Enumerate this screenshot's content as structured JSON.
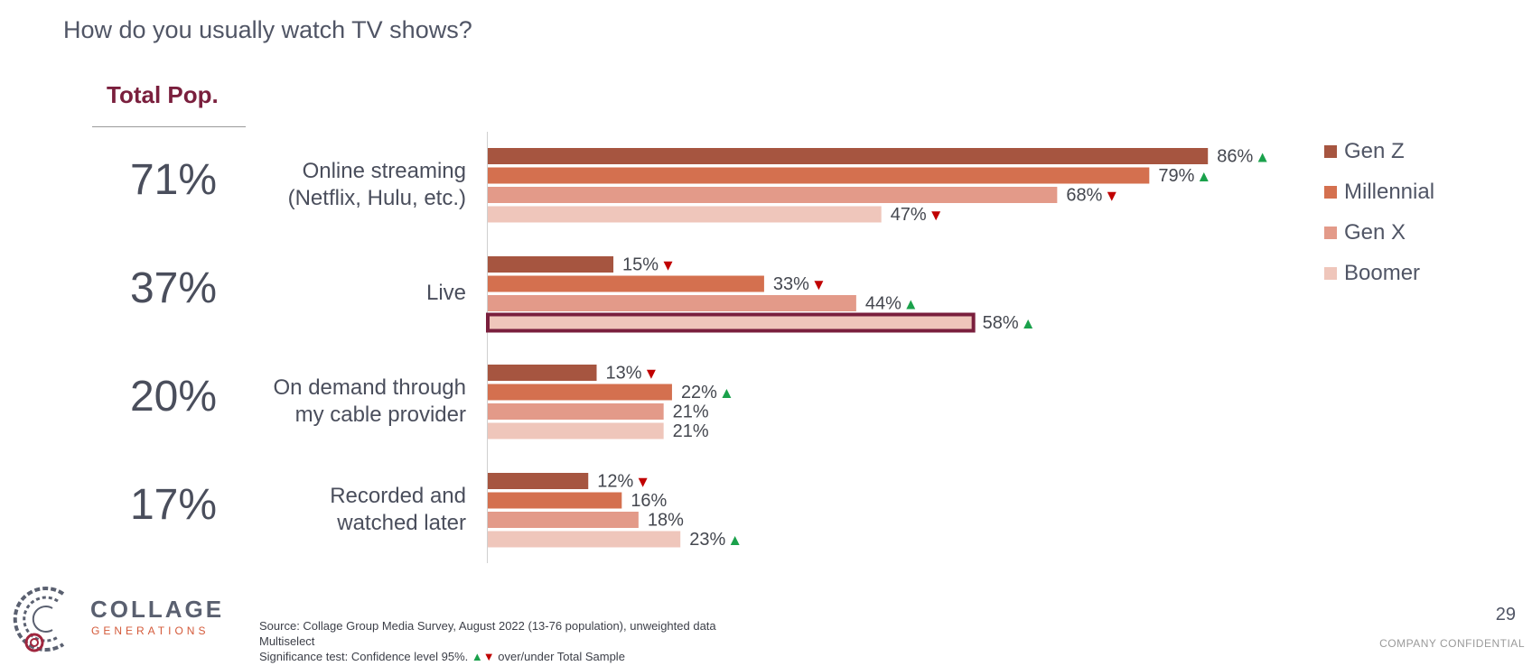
{
  "question": "How do you usually watch TV shows?",
  "total_header": "Total Pop.",
  "colors": {
    "Gen Z": "#a65540",
    "Millennial": "#d4704f",
    "Gen X": "#e39a89",
    "Boomer": "#efc6bb",
    "highlight_outline": "#7a1f3d",
    "sig_up": "#1aa14b",
    "sig_down": "#c00000"
  },
  "legend": [
    "Gen Z",
    "Millennial",
    "Gen X",
    "Boomer"
  ],
  "rows": [
    {
      "label_lines": [
        "Online streaming",
        "(Netflix, Hulu, etc.)"
      ],
      "total": "71%"
    },
    {
      "label_lines": [
        "Live"
      ],
      "total": "37%"
    },
    {
      "label_lines": [
        "On demand through",
        "my cable provider"
      ],
      "total": "20%"
    },
    {
      "label_lines": [
        "Recorded and",
        "watched later"
      ],
      "total": "17%"
    }
  ],
  "chart_data": {
    "type": "bar",
    "orientation": "horizontal",
    "categories": [
      "Online streaming (Netflix, Hulu, etc.)",
      "Live",
      "On demand through my cable provider",
      "Recorded and watched later"
    ],
    "series": [
      {
        "name": "Gen Z",
        "values": [
          86,
          15,
          13,
          12
        ],
        "significance": [
          "up",
          "down",
          "down",
          "down"
        ]
      },
      {
        "name": "Millennial",
        "values": [
          79,
          33,
          22,
          16
        ],
        "significance": [
          "up",
          "down",
          "up",
          null
        ]
      },
      {
        "name": "Gen X",
        "values": [
          68,
          44,
          21,
          18
        ],
        "significance": [
          "down",
          "up",
          null,
          null
        ]
      },
      {
        "name": "Boomer",
        "values": [
          47,
          58,
          21,
          23
        ],
        "significance": [
          "down",
          "up",
          null,
          "up"
        ]
      }
    ],
    "value_suffix": "%",
    "highlighted": {
      "category": "Live",
      "series": "Boomer"
    },
    "xlim": [
      0,
      100
    ],
    "legend_position": "right",
    "grid": false
  },
  "footnotes": [
    "Source: Collage Group Media Survey, August 2022 (13-76 population), unweighted data",
    "Multiselect",
    "Significance test: Confidence level 95%.",
    "over/under Total Sample"
  ],
  "sig_glyphs": {
    "up": "▲",
    "down": "▼"
  },
  "brand": {
    "name": "COLLAGE",
    "sub": "GENERATIONS"
  },
  "page_number": "29",
  "confidential": "COMPANY CONFIDENTIAL"
}
